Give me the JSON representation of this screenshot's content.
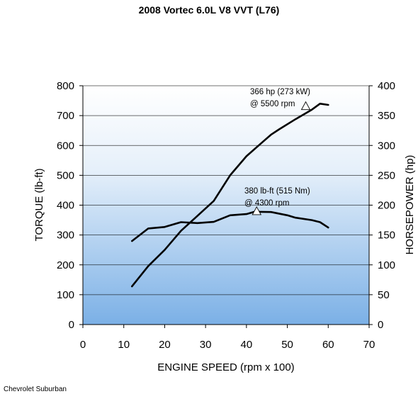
{
  "chart_data": {
    "type": "line",
    "title": "2008 Vortec 6.0L V8 VVT (L76)",
    "xlabel": "ENGINE SPEED (rpm x 100)",
    "ylabel": "TORQUE (lb-ft)",
    "y2label": "HORSEPOWER (hp)",
    "xlim": [
      0,
      70
    ],
    "ylim": [
      0,
      800
    ],
    "y2lim": [
      0,
      400
    ],
    "x_ticks": [
      0,
      10,
      20,
      30,
      40,
      50,
      60,
      70
    ],
    "y_ticks": [
      0,
      100,
      200,
      300,
      400,
      500,
      600,
      700,
      800
    ],
    "y2_ticks": [
      0,
      50,
      100,
      150,
      200,
      250,
      300,
      350,
      400
    ],
    "grid": "horizontal",
    "background": "gradient white-to-blue",
    "series": [
      {
        "axis": "left",
        "color": "#000000",
        "points": [
          [
            12,
            280
          ],
          [
            16,
            322
          ],
          [
            20,
            327
          ],
          [
            24,
            343
          ],
          [
            28,
            340
          ],
          [
            32,
            344
          ],
          [
            36,
            366
          ],
          [
            40,
            370
          ],
          [
            42,
            378
          ],
          [
            46,
            377
          ],
          [
            50,
            366
          ],
          [
            52,
            358
          ],
          [
            56,
            350
          ],
          [
            58,
            343
          ],
          [
            60,
            325
          ]
        ]
      },
      {
        "axis": "right",
        "color": "#000000",
        "points": [
          [
            12,
            64
          ],
          [
            16,
            98
          ],
          [
            20,
            125
          ],
          [
            24,
            157
          ],
          [
            28,
            182
          ],
          [
            32,
            207
          ],
          [
            36,
            250
          ],
          [
            40,
            282
          ],
          [
            44,
            306
          ],
          [
            46,
            318
          ],
          [
            48,
            327
          ],
          [
            52,
            344
          ],
          [
            56,
            360
          ],
          [
            58,
            370
          ],
          [
            60,
            368
          ]
        ]
      }
    ],
    "annotations": [
      {
        "line1": "366 hp (273 kW)",
        "line2": "@ 5500 rpm",
        "marker_x": 54.5,
        "marker_y_axis": "right",
        "marker_y": 366
      },
      {
        "line1": "380 lb-ft (515 Nm)",
        "line2": "@ 4300 rpm",
        "marker_x": 42.5,
        "marker_y_axis": "left",
        "marker_y": 380
      }
    ],
    "footer": "Chevrolet Suburban"
  }
}
